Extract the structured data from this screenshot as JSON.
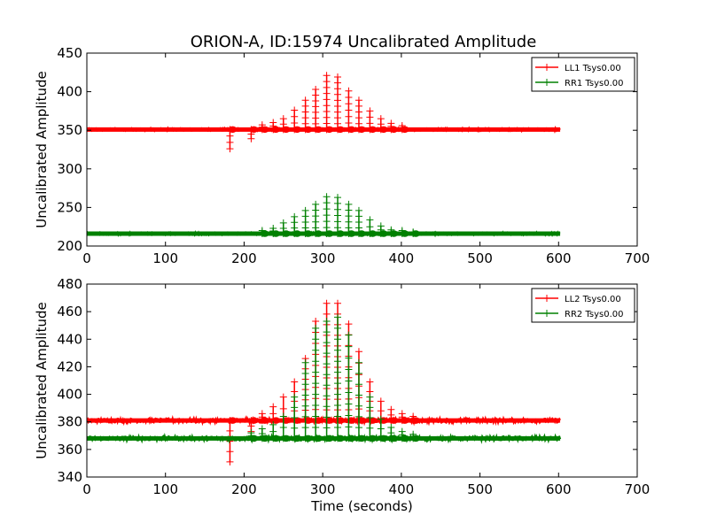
{
  "title": "ORION-A, ID:15974 Uncalibrated Amplitude",
  "chart_data": [
    {
      "type": "line",
      "ylabel": "Uncalibrated Amplitude",
      "xlabel": "",
      "xlim": [
        0,
        700
      ],
      "ylim": [
        200,
        450
      ],
      "xticks": [
        "0",
        "100",
        "200",
        "300",
        "400",
        "500",
        "600",
        "700"
      ],
      "yticks": [
        "200",
        "250",
        "300",
        "350",
        "400",
        "450"
      ],
      "legend_position": "top-right",
      "x_range": [
        0,
        602
      ],
      "peak_times": [
        168,
        182,
        196,
        209,
        223,
        237,
        250,
        264,
        278,
        291,
        305,
        319,
        333,
        346,
        360,
        374,
        387,
        401,
        415,
        429
      ],
      "series": [
        {
          "name": "LL1 Tsys0.00",
          "color": "#ff0000",
          "baseline": 351,
          "peaks": [
            0,
            -25,
            0,
            -12,
            6,
            9,
            14,
            25,
            38,
            52,
            70,
            68,
            50,
            38,
            24,
            14,
            8,
            5,
            0,
            0
          ]
        },
        {
          "name": "RR1 Tsys0.00",
          "color": "#008000",
          "baseline": 216,
          "peaks": [
            0,
            0,
            0,
            0,
            4,
            7,
            14,
            22,
            30,
            38,
            48,
            47,
            38,
            30,
            18,
            10,
            5,
            4,
            2,
            0
          ]
        }
      ]
    },
    {
      "type": "line",
      "ylabel": "Uncalibrated Amplitude",
      "xlabel": "Time (seconds)",
      "xlim": [
        0,
        700
      ],
      "ylim": [
        340,
        480
      ],
      "xticks": [
        "0",
        "100",
        "200",
        "300",
        "400",
        "500",
        "600",
        "700"
      ],
      "yticks": [
        "340",
        "360",
        "380",
        "400",
        "420",
        "440",
        "460",
        "480"
      ],
      "legend_position": "top-right",
      "x_range": [
        0,
        602
      ],
      "peak_times": [
        168,
        182,
        196,
        209,
        223,
        237,
        250,
        264,
        278,
        291,
        305,
        319,
        333,
        346,
        360,
        374,
        387,
        401,
        415,
        429
      ],
      "series": [
        {
          "name": "LL2 Tsys0.00",
          "color": "#ff0000",
          "baseline": 381,
          "peaks": [
            0,
            -30,
            0,
            -8,
            5,
            10,
            17,
            28,
            45,
            72,
            85,
            85,
            70,
            50,
            28,
            14,
            8,
            5,
            3,
            0
          ]
        },
        {
          "name": "RR2 Tsys0.00",
          "color": "#008000",
          "baseline": 368,
          "peaks": [
            0,
            0,
            0,
            4,
            7,
            10,
            16,
            30,
            55,
            80,
            85,
            88,
            75,
            55,
            30,
            14,
            8,
            5,
            3,
            0
          ]
        }
      ]
    }
  ]
}
